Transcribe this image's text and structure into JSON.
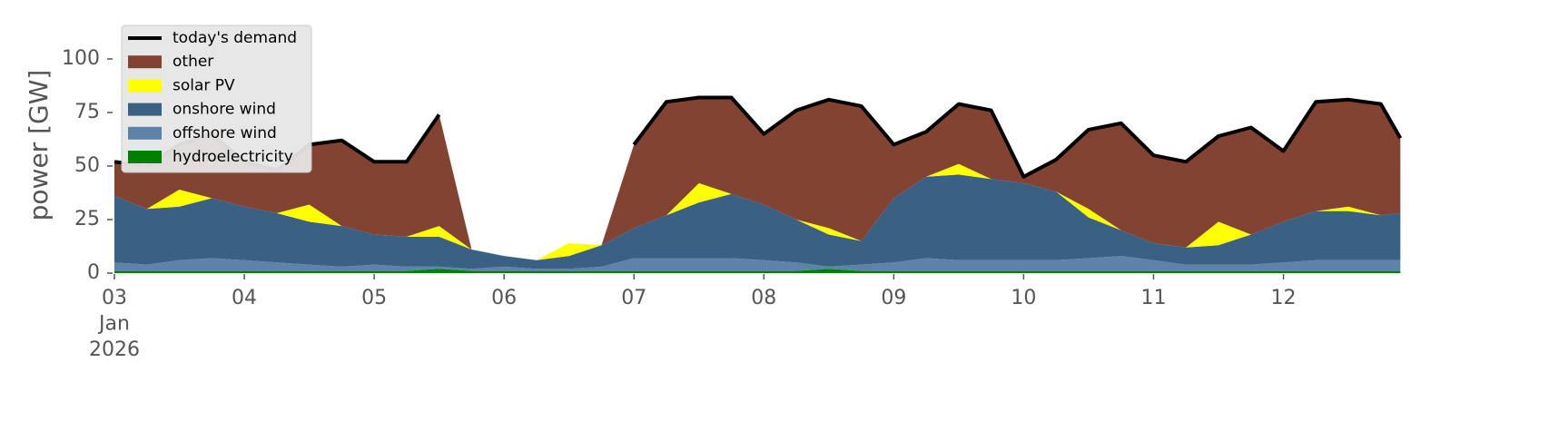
{
  "chart_data": {
    "type": "area",
    "stacked": true,
    "y_label": "power [GW]",
    "x": [
      3,
      3.25,
      3.5,
      3.75,
      4,
      4.25,
      4.5,
      4.75,
      5,
      5.25,
      5.5,
      5.75,
      6,
      6.25,
      6.5,
      6.75,
      7,
      7.25,
      7.5,
      7.75,
      8,
      8.25,
      8.5,
      8.75,
      9,
      9.25,
      9.5,
      9.75,
      10,
      10.25,
      10.5,
      10.75,
      11,
      11.25,
      11.5,
      11.75,
      12,
      12.25,
      12.5,
      12.75,
      12.9
    ],
    "xlim": [
      3,
      12.94
    ],
    "xticks": [
      {
        "value": 3,
        "label": "03\nJan\n2026"
      },
      {
        "value": 4,
        "label": "04"
      },
      {
        "value": 5,
        "label": "05"
      },
      {
        "value": 6,
        "label": "06"
      },
      {
        "value": 7,
        "label": "07"
      },
      {
        "value": 8,
        "label": "08"
      },
      {
        "value": 9,
        "label": "09"
      },
      {
        "value": 10,
        "label": "10"
      },
      {
        "value": 11,
        "label": "11"
      },
      {
        "value": 12,
        "label": "12"
      }
    ],
    "ylim": [
      0,
      120
    ],
    "yticks": [
      0,
      25,
      50,
      75,
      100
    ],
    "grid": false,
    "legend": "upper left",
    "series": [
      {
        "name": "today's demand",
        "color": "#000000",
        "kind": "line",
        "values": [
          52,
          50,
          60,
          65,
          52,
          48,
          60,
          62,
          52,
          52,
          74,
          null,
          null,
          null,
          null,
          null,
          60,
          80,
          82,
          82,
          65,
          76,
          81,
          78,
          60,
          66,
          79,
          76,
          45,
          53,
          67,
          70,
          55,
          52,
          64,
          68,
          57,
          80,
          81,
          79,
          63
        ]
      },
      {
        "name": "other",
        "color": "#824332",
        "kind": "area",
        "values": [
          16,
          20,
          21,
          30,
          21,
          20,
          28,
          40,
          34,
          35,
          52,
          0,
          0,
          0,
          0,
          0,
          39,
          53,
          40,
          45,
          33,
          51,
          60,
          63,
          25,
          21,
          28,
          32,
          3,
          15,
          37,
          50,
          41,
          40,
          40,
          50,
          33,
          51,
          50,
          52,
          35
        ]
      },
      {
        "name": "solar PV",
        "color": "#ffff00",
        "kind": "area",
        "values": [
          0,
          0,
          8,
          0,
          0,
          0,
          8,
          0,
          0,
          0,
          5,
          0,
          0,
          0,
          6,
          0,
          0,
          0,
          9,
          0,
          0,
          0,
          3,
          0,
          0,
          0,
          5,
          0,
          0,
          0,
          4,
          0,
          0,
          0,
          11,
          0,
          0,
          0,
          2,
          0,
          0
        ]
      },
      {
        "name": "onshore wind",
        "color": "#3a6183",
        "kind": "area",
        "values": [
          31,
          26,
          25,
          28,
          25,
          23,
          20,
          19,
          14,
          14,
          14,
          9,
          5,
          4,
          6,
          10,
          14,
          20,
          26,
          30,
          26,
          20,
          15,
          11,
          30,
          38,
          40,
          38,
          36,
          32,
          19,
          12,
          8,
          8,
          9,
          14,
          19,
          23,
          23,
          21,
          22
        ]
      },
      {
        "name": "offshore wind",
        "color": "#5c84a8",
        "kind": "area",
        "values": [
          4,
          3,
          5,
          6,
          5,
          4,
          3,
          2,
          3,
          2,
          1,
          1,
          2,
          1,
          1,
          2,
          6,
          6,
          6,
          6,
          5,
          4,
          1,
          3,
          4,
          6,
          5,
          5,
          5,
          5,
          6,
          7,
          5,
          3,
          3,
          3,
          4,
          5,
          5,
          5,
          5
        ]
      },
      {
        "name": "hydroelectricity",
        "color": "#008000",
        "kind": "area",
        "values": [
          1,
          1,
          1,
          1,
          1,
          1,
          1,
          1,
          1,
          1,
          2,
          1,
          1,
          1,
          1,
          1,
          1,
          1,
          1,
          1,
          1,
          1,
          2,
          1,
          1,
          1,
          1,
          1,
          1,
          1,
          1,
          1,
          1,
          1,
          1,
          1,
          1,
          1,
          1,
          1,
          1
        ]
      }
    ]
  }
}
